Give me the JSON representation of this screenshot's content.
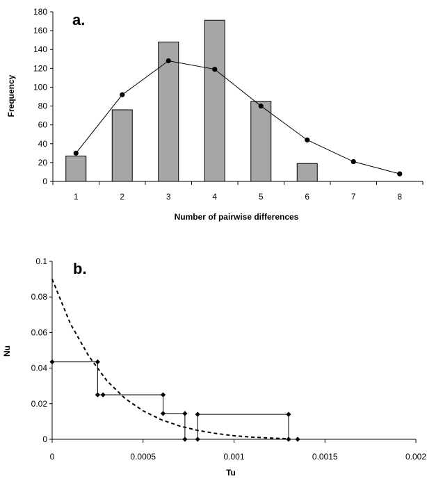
{
  "chart_data": [
    {
      "type": "bar",
      "panel_label": "a.",
      "xlabel": "Number of pairwise differences",
      "ylabel": "Frequency",
      "ylim": [
        0,
        180
      ],
      "yticks": [
        0,
        20,
        40,
        60,
        80,
        100,
        120,
        140,
        160,
        180
      ],
      "categories": [
        "1",
        "2",
        "3",
        "4",
        "5",
        "6",
        "7",
        "8"
      ],
      "series": [
        {
          "values": [
            27,
            76,
            148,
            171,
            85,
            19,
            0,
            0
          ],
          "style": "bar",
          "color": "#a6a6a6"
        },
        {
          "values": [
            30,
            92,
            128,
            119,
            80,
            44,
            21,
            8
          ],
          "style": "line-markers",
          "color": "#000000"
        }
      ],
      "grid": false
    },
    {
      "type": "line",
      "panel_label": "b.",
      "xlabel": "Tu",
      "ylabel": "Nu",
      "xlim": [
        0,
        0.002
      ],
      "ylim": [
        0,
        0.1
      ],
      "xticks": [
        "0",
        "0.0005",
        "0.001",
        "0.0015",
        "0.002"
      ],
      "yticks": [
        "0",
        "0.02",
        "0.04",
        "0.06",
        "0.08",
        "0.1"
      ],
      "series": [
        {
          "style": "step-markers",
          "color": "#000000",
          "points": [
            [
              0,
              0.0435
            ],
            [
              0.00025,
              0.0435
            ],
            [
              0.00025,
              0.025
            ],
            [
              0.00028,
              0.025
            ],
            [
              0.00061,
              0.025
            ],
            [
              0.00061,
              0.0145
            ],
            [
              0.00073,
              0.0145
            ],
            [
              0.00073,
              0
            ],
            [
              0.0008,
              0
            ],
            [
              0.0008,
              0.014
            ],
            [
              0.0013,
              0.014
            ],
            [
              0.0013,
              0
            ],
            [
              0.00135,
              0
            ]
          ],
          "markers": [
            [
              0,
              0.0435
            ],
            [
              0.00025,
              0.0435
            ],
            [
              0.00025,
              0.025
            ],
            [
              0.00028,
              0.025
            ],
            [
              0.00061,
              0.025
            ],
            [
              0.00061,
              0.0145
            ],
            [
              0.00073,
              0.0145
            ],
            [
              0.00073,
              0
            ],
            [
              0.0008,
              0
            ],
            [
              0.0008,
              0.014
            ],
            [
              0.0013,
              0.014
            ],
            [
              0.0013,
              0
            ],
            [
              0.00135,
              0
            ]
          ]
        },
        {
          "style": "dashed-curve",
          "color": "#000000",
          "points": [
            [
              0,
              0.09
            ],
            [
              0.0001,
              0.065
            ],
            [
              0.0002,
              0.047
            ],
            [
              0.0003,
              0.033
            ],
            [
              0.0004,
              0.023
            ],
            [
              0.0005,
              0.016
            ],
            [
              0.0006,
              0.011
            ],
            [
              0.0007,
              0.0075
            ],
            [
              0.0008,
              0.005
            ],
            [
              0.0009,
              0.0033
            ],
            [
              0.001,
              0.002
            ],
            [
              0.0011,
              0.0012
            ],
            [
              0.0012,
              0.0007
            ],
            [
              0.0013,
              0.0003
            ]
          ]
        }
      ],
      "grid": false
    }
  ]
}
